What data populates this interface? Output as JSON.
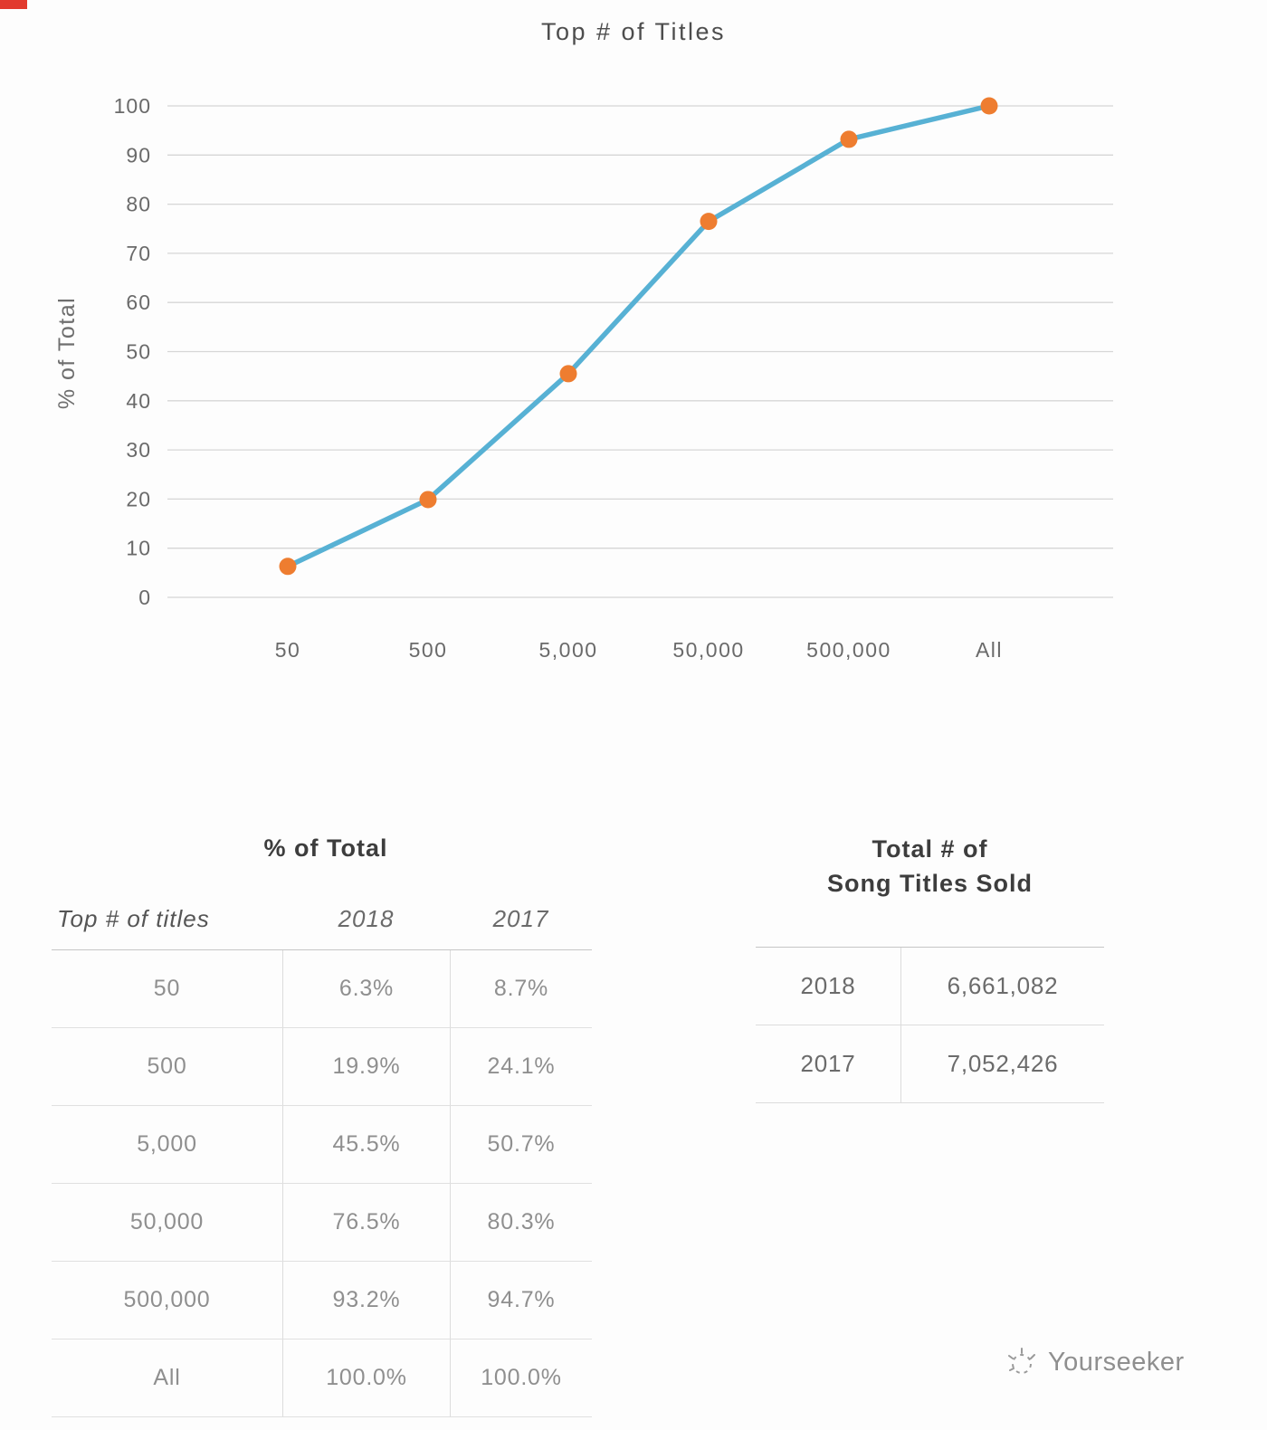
{
  "chart_data": {
    "type": "line",
    "title": "Top # of Titles",
    "ylabel": "% of Total",
    "categories": [
      "50",
      "500",
      "5,000",
      "50,000",
      "500,000",
      "All"
    ],
    "series": [
      {
        "name": "2018",
        "values": [
          6.3,
          19.9,
          45.5,
          76.5,
          93.2,
          100.0
        ]
      }
    ],
    "ylim": [
      0,
      100
    ],
    "yticks": [
      0,
      10,
      20,
      30,
      40,
      50,
      60,
      70,
      80,
      90,
      100
    ],
    "grid": true,
    "legend": "none",
    "line_color": "#57b1d4",
    "marker_color": "#ee7d30",
    "grid_color": "#d6d6d6",
    "tick_color": "#6a6a6a"
  },
  "pct_table": {
    "title": "% of Total",
    "columns": [
      "Top # of titles",
      "2018",
      "2017"
    ],
    "rows": [
      [
        "50",
        "6.3%",
        "8.7%"
      ],
      [
        "500",
        "19.9%",
        "24.1%"
      ],
      [
        "5,000",
        "45.5%",
        "50.7%"
      ],
      [
        "50,000",
        "76.5%",
        "80.3%"
      ],
      [
        "500,000",
        "93.2%",
        "94.7%"
      ],
      [
        "All",
        "100.0%",
        "100.0%"
      ]
    ]
  },
  "totals_table": {
    "title_line1": "Total # of",
    "title_line2": "Song Titles Sold",
    "rows": [
      [
        "2018",
        "6,661,082"
      ],
      [
        "2017",
        "7,052,426"
      ]
    ]
  },
  "watermark": {
    "label": "Yourseeker"
  }
}
